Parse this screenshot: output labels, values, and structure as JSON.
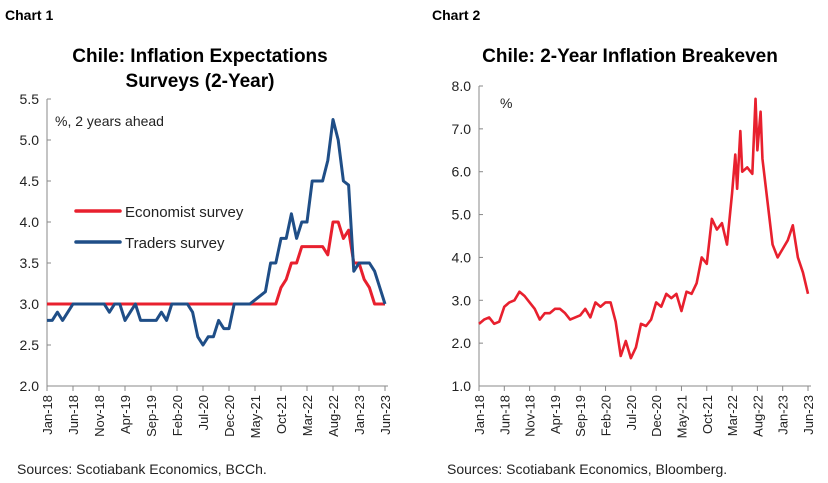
{
  "chart_data": [
    {
      "panel_label": "Chart 1",
      "type": "line",
      "title": [
        "Chile: Inflation Expectations",
        "Surveys (2-Year)"
      ],
      "annotation": "%, 2 years ahead",
      "ylim": [
        2.0,
        5.5
      ],
      "y_ticks": [
        "2.0",
        "2.5",
        "3.0",
        "3.5",
        "4.0",
        "4.5",
        "5.0",
        "5.5"
      ],
      "x_range": [
        "2018-01",
        "2023-06"
      ],
      "x_tick_labels": [
        "Jan-18",
        "Jun-18",
        "Nov-18",
        "Apr-19",
        "Sep-19",
        "Feb-20",
        "Jul-20",
        "Dec-20",
        "May-21",
        "Oct-21",
        "Mar-22",
        "Aug-22",
        "Jan-23",
        "Jun-23"
      ],
      "grid": false,
      "legend": "middle-left",
      "source": "Sources: Scotiabank Economics, BCCh.",
      "series": [
        {
          "name": "Economist survey",
          "color": "#e8202e",
          "start": "2018-01",
          "frequency": "monthly",
          "values": [
            3.0,
            3.0,
            3.0,
            3.0,
            3.0,
            3.0,
            3.0,
            3.0,
            3.0,
            3.0,
            3.0,
            3.0,
            3.0,
            3.0,
            3.0,
            3.0,
            3.0,
            3.0,
            3.0,
            3.0,
            3.0,
            3.0,
            3.0,
            3.0,
            3.0,
            3.0,
            3.0,
            3.0,
            3.0,
            3.0,
            3.0,
            3.0,
            3.0,
            3.0,
            3.0,
            3.0,
            3.0,
            3.0,
            3.0,
            3.0,
            3.0,
            3.0,
            3.0,
            3.0,
            3.0,
            3.2,
            3.3,
            3.5,
            3.5,
            3.7,
            3.7,
            3.7,
            3.7,
            3.7,
            3.6,
            4.0,
            4.0,
            3.8,
            3.9,
            3.5,
            3.5,
            3.3,
            3.2,
            3.0,
            3.0,
            3.0
          ]
        },
        {
          "name": "Traders survey",
          "color": "#1f4e87",
          "start": "2018-01",
          "frequency": "monthly",
          "values": [
            2.8,
            2.8,
            2.9,
            2.8,
            2.9,
            3.0,
            3.0,
            3.0,
            3.0,
            3.0,
            3.0,
            3.0,
            2.9,
            3.0,
            3.0,
            2.8,
            2.9,
            3.0,
            2.8,
            2.8,
            2.8,
            2.8,
            2.9,
            2.8,
            3.0,
            3.0,
            3.0,
            3.0,
            2.9,
            2.6,
            2.5,
            2.6,
            2.6,
            2.8,
            2.7,
            2.7,
            3.0,
            3.0,
            3.0,
            3.0,
            3.05,
            3.1,
            3.15,
            3.5,
            3.5,
            3.8,
            3.8,
            4.1,
            3.8,
            4.0,
            4.0,
            4.5,
            4.5,
            4.5,
            4.75,
            5.25,
            5.0,
            4.5,
            4.45,
            3.4,
            3.5,
            3.5,
            3.5,
            3.4,
            3.2,
            3.0
          ]
        }
      ]
    },
    {
      "panel_label": "Chart 2",
      "type": "line",
      "title": [
        "Chile: 2-Year Inflation Breakeven"
      ],
      "annotation": "%",
      "ylim": [
        1.0,
        8.0
      ],
      "y_ticks": [
        "1.0",
        "2.0",
        "3.0",
        "4.0",
        "5.0",
        "6.0",
        "7.0",
        "8.0"
      ],
      "x_range": [
        "2018-01",
        "2023-06"
      ],
      "x_tick_labels": [
        "Jan-18",
        "Jun-18",
        "Nov-18",
        "Apr-19",
        "Sep-19",
        "Feb-20",
        "Jul-20",
        "Dec-20",
        "May-21",
        "Oct-21",
        "Mar-22",
        "Aug-22",
        "Jan-23",
        "Jun-23"
      ],
      "grid": false,
      "source": "Sources: Scotiabank Economics, Bloomberg.",
      "series": [
        {
          "color": "#e8202e",
          "points": [
            [
              "2018-01",
              2.45
            ],
            [
              "2018-02",
              2.55
            ],
            [
              "2018-03",
              2.6
            ],
            [
              "2018-04",
              2.45
            ],
            [
              "2018-05",
              2.5
            ],
            [
              "2018-06",
              2.85
            ],
            [
              "2018-07",
              2.95
            ],
            [
              "2018-08",
              3.0
            ],
            [
              "2018-09",
              3.2
            ],
            [
              "2018-10",
              3.1
            ],
            [
              "2018-11",
              2.95
            ],
            [
              "2018-12",
              2.8
            ],
            [
              "2019-01",
              2.55
            ],
            [
              "2019-02",
              2.7
            ],
            [
              "2019-03",
              2.7
            ],
            [
              "2019-04",
              2.8
            ],
            [
              "2019-05",
              2.8
            ],
            [
              "2019-06",
              2.7
            ],
            [
              "2019-07",
              2.55
            ],
            [
              "2019-08",
              2.6
            ],
            [
              "2019-09",
              2.65
            ],
            [
              "2019-10",
              2.8
            ],
            [
              "2019-11",
              2.6
            ],
            [
              "2019-12",
              2.95
            ],
            [
              "2020-01",
              2.85
            ],
            [
              "2020-02",
              2.95
            ],
            [
              "2020-03",
              2.95
            ],
            [
              "2020-04",
              2.5
            ],
            [
              "2020-05",
              1.7
            ],
            [
              "2020-06",
              2.05
            ],
            [
              "2020-07",
              1.65
            ],
            [
              "2020-08",
              1.9
            ],
            [
              "2020-09",
              2.45
            ],
            [
              "2020-10",
              2.4
            ],
            [
              "2020-11",
              2.55
            ],
            [
              "2020-12",
              2.95
            ],
            [
              "2021-01",
              2.85
            ],
            [
              "2021-02",
              3.15
            ],
            [
              "2021-03",
              3.05
            ],
            [
              "2021-04",
              3.15
            ],
            [
              "2021-05",
              2.75
            ],
            [
              "2021-06",
              3.2
            ],
            [
              "2021-07",
              3.15
            ],
            [
              "2021-08",
              3.4
            ],
            [
              "2021-09",
              4.0
            ],
            [
              "2021-10",
              3.85
            ],
            [
              "2021-11",
              4.9
            ],
            [
              "2021-12",
              4.65
            ],
            [
              "2022-01",
              4.8
            ],
            [
              "2022-02",
              4.3
            ],
            [
              "2022-03",
              5.5
            ],
            [
              "2022-03-20",
              6.4
            ],
            [
              "2022-04",
              5.6
            ],
            [
              "2022-04-20",
              6.95
            ],
            [
              "2022-05",
              6.0
            ],
            [
              "2022-06",
              6.1
            ],
            [
              "2022-07",
              5.95
            ],
            [
              "2022-07-20",
              7.7
            ],
            [
              "2022-08",
              6.5
            ],
            [
              "2022-08-20",
              7.4
            ],
            [
              "2022-09",
              6.3
            ],
            [
              "2022-10",
              5.3
            ],
            [
              "2022-11",
              4.3
            ],
            [
              "2022-12",
              4.0
            ],
            [
              "2023-01",
              4.2
            ],
            [
              "2023-02",
              4.4
            ],
            [
              "2023-03",
              4.75
            ],
            [
              "2023-04",
              4.0
            ],
            [
              "2023-05",
              3.65
            ],
            [
              "2023-06",
              3.15
            ]
          ]
        }
      ]
    }
  ]
}
